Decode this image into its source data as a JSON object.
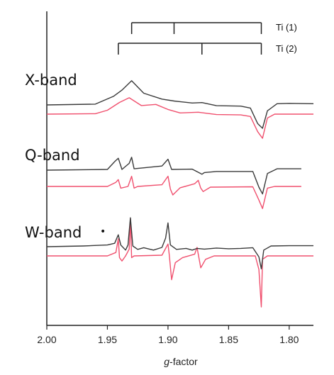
{
  "chart_data": {
    "type": "line",
    "xlabel_italic": "g",
    "xlabel_rest": "-factor",
    "xlim": [
      2.0,
      1.78
    ],
    "x_ticks": [
      "2.00",
      "1.95",
      "1.90",
      "1.85",
      "1.80"
    ],
    "x_tick_values": [
      2.0,
      1.95,
      1.9,
      1.85,
      1.8
    ],
    "grid": false,
    "colors": {
      "experimental": "#3a3a3a",
      "simulated": "#f0506e",
      "frame": "#222222"
    },
    "stick_diagrams": [
      {
        "label": "Ti (1)",
        "g_values": [
          1.93,
          1.895,
          1.823
        ]
      },
      {
        "label": "Ti (2)",
        "g_values": [
          1.941,
          1.872,
          1.823
        ]
      }
    ],
    "spectra": [
      {
        "band": "X-band",
        "marker": "",
        "experimental": [
          [
            2.0,
            0
          ],
          [
            1.96,
            0.02
          ],
          [
            1.945,
            0.22
          ],
          [
            1.938,
            0.38
          ],
          [
            1.93,
            0.62
          ],
          [
            1.92,
            0.3
          ],
          [
            1.905,
            0.15
          ],
          [
            1.895,
            0.1
          ],
          [
            1.88,
            0.05
          ],
          [
            1.872,
            0.06
          ],
          [
            1.86,
            -0.02
          ],
          [
            1.84,
            -0.03
          ],
          [
            1.832,
            -0.08
          ],
          [
            1.826,
            -0.48
          ],
          [
            1.822,
            -0.6
          ],
          [
            1.818,
            -0.15
          ],
          [
            1.81,
            0.03
          ],
          [
            1.8,
            0.04
          ],
          [
            1.78,
            0.03
          ]
        ],
        "simulated": [
          [
            2.0,
            0
          ],
          [
            1.96,
            0.01
          ],
          [
            1.95,
            0.1
          ],
          [
            1.94,
            0.3
          ],
          [
            1.932,
            0.42
          ],
          [
            1.922,
            0.22
          ],
          [
            1.91,
            0.25
          ],
          [
            1.9,
            0.12
          ],
          [
            1.89,
            0.03
          ],
          [
            1.875,
            0.05
          ],
          [
            1.86,
            -0.01
          ],
          [
            1.84,
            -0.02
          ],
          [
            1.832,
            -0.06
          ],
          [
            1.826,
            -0.45
          ],
          [
            1.822,
            -0.62
          ],
          [
            1.818,
            -0.1
          ],
          [
            1.812,
            0
          ],
          [
            1.78,
            0
          ]
        ]
      },
      {
        "band": "Q-band",
        "marker": "",
        "experimental": [
          [
            2.0,
            0
          ],
          [
            1.95,
            0.02
          ],
          [
            1.944,
            0.25
          ],
          [
            1.941,
            0.35
          ],
          [
            1.938,
            0.02
          ],
          [
            1.932,
            0.2
          ],
          [
            1.93,
            0.38
          ],
          [
            1.928,
            0.04
          ],
          [
            1.905,
            0.12
          ],
          [
            1.9,
            0.32
          ],
          [
            1.897,
            0.02
          ],
          [
            1.88,
            0.03
          ],
          [
            1.872,
            -0.12
          ],
          [
            1.87,
            -0.07
          ],
          [
            1.86,
            -0.04
          ],
          [
            1.83,
            -0.04
          ],
          [
            1.825,
            -0.5
          ],
          [
            1.822,
            -0.7
          ],
          [
            1.818,
            -0.1
          ],
          [
            1.81,
            0.04
          ],
          [
            1.79,
            0.04
          ]
        ],
        "simulated": [
          [
            2.0,
            0
          ],
          [
            1.95,
            0
          ],
          [
            1.943,
            0.12
          ],
          [
            1.941,
            0.2
          ],
          [
            1.939,
            -0.05
          ],
          [
            1.933,
            0
          ],
          [
            1.93,
            0.3
          ],
          [
            1.928,
            -0.05
          ],
          [
            1.925,
            0
          ],
          [
            1.905,
            0.05
          ],
          [
            1.9,
            0.3
          ],
          [
            1.898,
            -0.08
          ],
          [
            1.896,
            -0.25
          ],
          [
            1.89,
            -0.04
          ],
          [
            1.878,
            0.08
          ],
          [
            1.875,
            0.18
          ],
          [
            1.873,
            -0.05
          ],
          [
            1.871,
            -0.15
          ],
          [
            1.865,
            -0.02
          ],
          [
            1.83,
            -0.01
          ],
          [
            1.825,
            -0.4
          ],
          [
            1.822,
            -0.65
          ],
          [
            1.818,
            -0.05
          ],
          [
            1.812,
            0
          ],
          [
            1.79,
            0
          ]
        ]
      },
      {
        "band": "W-band",
        "marker": "•",
        "experimental": [
          [
            2.0,
            0
          ],
          [
            1.97,
            0.02
          ],
          [
            1.95,
            0.05
          ],
          [
            1.944,
            0.1
          ],
          [
            1.941,
            0.35
          ],
          [
            1.939,
            0.05
          ],
          [
            1.935,
            -0.1
          ],
          [
            1.933,
            0.05
          ],
          [
            1.931,
            0.85
          ],
          [
            1.929,
            0.02
          ],
          [
            1.925,
            -0.08
          ],
          [
            1.92,
            -0.03
          ],
          [
            1.912,
            -0.1
          ],
          [
            1.905,
            -0.02
          ],
          [
            1.902,
            0.25
          ],
          [
            1.9,
            0.7
          ],
          [
            1.898,
            0.05
          ],
          [
            1.893,
            -0.08
          ],
          [
            1.885,
            -0.05
          ],
          [
            1.88,
            -0.1
          ],
          [
            1.876,
            -0.05
          ],
          [
            1.87,
            -0.07
          ],
          [
            1.86,
            -0.04
          ],
          [
            1.85,
            -0.06
          ],
          [
            1.84,
            -0.05
          ],
          [
            1.83,
            -0.03
          ],
          [
            1.825,
            -0.3
          ],
          [
            1.823,
            -0.65
          ],
          [
            1.821,
            -0.1
          ],
          [
            1.815,
            0.02
          ],
          [
            1.8,
            0.03
          ],
          [
            1.78,
            0.03
          ]
        ],
        "simulated": [
          [
            2.0,
            0
          ],
          [
            1.95,
            0
          ],
          [
            1.943,
            0.1
          ],
          [
            1.941,
            0.5
          ],
          [
            1.94,
            -0.05
          ],
          [
            1.938,
            -0.15
          ],
          [
            1.935,
            0
          ],
          [
            1.932,
            0.2
          ],
          [
            1.931,
            1.1
          ],
          [
            1.93,
            -0.05
          ],
          [
            1.928,
            0
          ],
          [
            1.905,
            0.02
          ],
          [
            1.9,
            0.35
          ],
          [
            1.899,
            0.05
          ],
          [
            1.897,
            -0.7
          ],
          [
            1.894,
            -0.2
          ],
          [
            1.888,
            -0.05
          ],
          [
            1.878,
            0.05
          ],
          [
            1.876,
            0.25
          ],
          [
            1.875,
            0.05
          ],
          [
            1.873,
            -0.35
          ],
          [
            1.869,
            -0.1
          ],
          [
            1.862,
            0
          ],
          [
            1.828,
            0
          ],
          [
            1.825,
            -0.4
          ],
          [
            1.823,
            -1.5
          ],
          [
            1.822,
            -0.1
          ],
          [
            1.818,
            0
          ],
          [
            1.78,
            0
          ]
        ]
      }
    ]
  }
}
